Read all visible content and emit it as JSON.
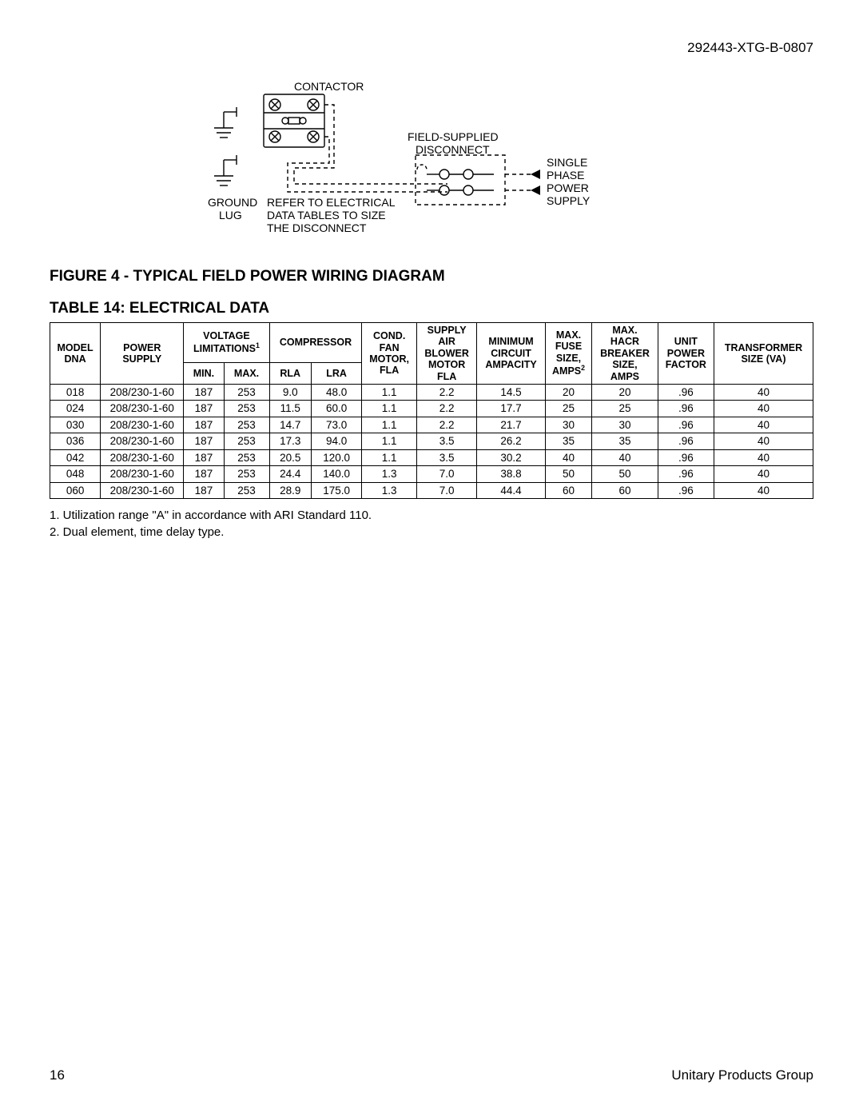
{
  "docnum": "292443-XTG-B-0807",
  "diagram": {
    "labels": {
      "contactor": "CONTACTOR",
      "ground_lug": "GROUND\nLUG",
      "refer": "REFER TO ELECTRICAL\nDATA TABLES TO SIZE\nTHE DISCONNECT",
      "field_disc": "FIELD-SUPPLIED\nDISCONNECT",
      "single_phase": "SINGLE\nPHASE\nPOWER\nSUPPLY"
    },
    "colors": {
      "stroke": "#000000",
      "bg": "#ffffff"
    }
  },
  "figure_caption": "FIGURE 4 -  TYPICAL FIELD POWER WIRING DIAGRAM",
  "table_caption": "TABLE 14: ELECTRICAL DATA",
  "table": {
    "headers": {
      "model_dna": "MODEL\nDNA",
      "power_supply": "POWER\nSUPPLY",
      "voltage_lim": "VOLTAGE\nLIMITATIONS",
      "voltage_sup": "1",
      "min": "MIN.",
      "max": "MAX.",
      "compressor": "COMPRESSOR",
      "rla": "RLA",
      "lra": "LRA",
      "cond_fan": "COND.\nFAN\nMOTOR,\nFLA",
      "supply_air": "SUPPLY\nAIR\nBLOWER\nMOTOR\nFLA",
      "min_circ": "MINIMUM\nCIRCUIT\nAMPACITY",
      "max_fuse": "MAX.\nFUSE\nSIZE,\nAMPS",
      "max_fuse_sup": "2",
      "max_hacr": "MAX.\nHACR\nBREAKER\nSIZE,\nAMPS",
      "unit_pf": "UNIT\nPOWER\nFACTOR",
      "transformer": "TRANSFORMER\nSIZE (VA)"
    },
    "rows": [
      {
        "model": "018",
        "ps": "208/230-1-60",
        "min": "187",
        "max": "253",
        "rla": "9.0",
        "lra": "48.0",
        "cond": "1.1",
        "blower": "2.2",
        "mca": "14.5",
        "fuse": "20",
        "hacr": "20",
        "pf": ".96",
        "trans": "40"
      },
      {
        "model": "024",
        "ps": "208/230-1-60",
        "min": "187",
        "max": "253",
        "rla": "11.5",
        "lra": "60.0",
        "cond": "1.1",
        "blower": "2.2",
        "mca": "17.7",
        "fuse": "25",
        "hacr": "25",
        "pf": ".96",
        "trans": "40"
      },
      {
        "model": "030",
        "ps": "208/230-1-60",
        "min": "187",
        "max": "253",
        "rla": "14.7",
        "lra": "73.0",
        "cond": "1.1",
        "blower": "2.2",
        "mca": "21.7",
        "fuse": "30",
        "hacr": "30",
        "pf": ".96",
        "trans": "40"
      },
      {
        "model": "036",
        "ps": "208/230-1-60",
        "min": "187",
        "max": "253",
        "rla": "17.3",
        "lra": "94.0",
        "cond": "1.1",
        "blower": "3.5",
        "mca": "26.2",
        "fuse": "35",
        "hacr": "35",
        "pf": ".96",
        "trans": "40"
      },
      {
        "model": "042",
        "ps": "208/230-1-60",
        "min": "187",
        "max": "253",
        "rla": "20.5",
        "lra": "120.0",
        "cond": "1.1",
        "blower": "3.5",
        "mca": "30.2",
        "fuse": "40",
        "hacr": "40",
        "pf": ".96",
        "trans": "40"
      },
      {
        "model": "048",
        "ps": "208/230-1-60",
        "min": "187",
        "max": "253",
        "rla": "24.4",
        "lra": "140.0",
        "cond": "1.3",
        "blower": "7.0",
        "mca": "38.8",
        "fuse": "50",
        "hacr": "50",
        "pf": ".96",
        "trans": "40"
      },
      {
        "model": "060",
        "ps": "208/230-1-60",
        "min": "187",
        "max": "253",
        "rla": "28.9",
        "lra": "175.0",
        "cond": "1.3",
        "blower": "7.0",
        "mca": "44.4",
        "fuse": "60",
        "hacr": "60",
        "pf": ".96",
        "trans": "40"
      }
    ]
  },
  "notes": [
    "1.  Utilization range \"A\" in accordance with ARI Standard 110.",
    "2.  Dual element, time delay type."
  ],
  "footer": {
    "page": "16",
    "company": "Unitary Products Group"
  }
}
